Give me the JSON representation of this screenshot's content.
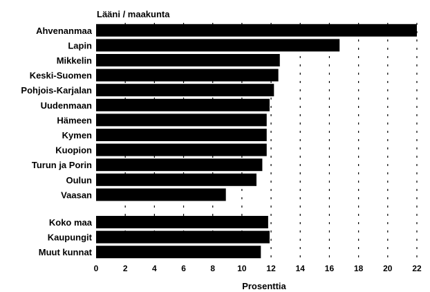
{
  "chart_data": {
    "type": "bar",
    "orientation": "horizontal",
    "title": "Lääni / maakunta",
    "xlabel": "Prosenttia",
    "ylabel": "",
    "xlim": [
      0,
      22
    ],
    "xticks": [
      0,
      2,
      4,
      6,
      8,
      10,
      12,
      14,
      16,
      18,
      20,
      22
    ],
    "grid": "vertical dashed",
    "groups": [
      {
        "categories": [
          "Ahvenanmaa",
          "Lapin",
          "Mikkelin",
          "Keski-Suomen",
          "Pohjois-Karjalan",
          "Uudenmaan",
          "Hämeen",
          "Kymen",
          "Kuopion",
          "Turun ja Porin",
          "Oulun",
          "Vaasan"
        ],
        "values": [
          22.0,
          16.7,
          12.6,
          12.5,
          12.2,
          11.9,
          11.7,
          11.7,
          11.7,
          11.4,
          11.0,
          8.9
        ]
      },
      {
        "categories": [
          "Koko maa",
          "Kaupungit",
          "Muut kunnat"
        ],
        "values": [
          11.8,
          11.9,
          11.3
        ]
      }
    ],
    "bar_color": "#000000"
  }
}
